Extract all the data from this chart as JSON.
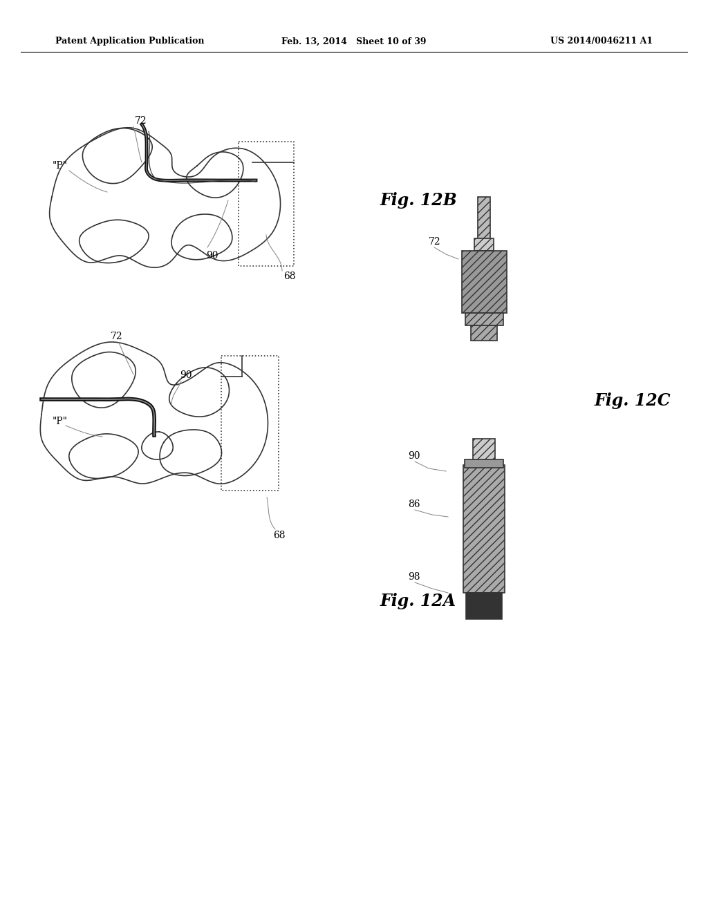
{
  "background_color": "#ffffff",
  "header_left": "Patent Application Publication",
  "header_center": "Feb. 13, 2014   Sheet 10 of 39",
  "header_right": "US 2014/0046211 A1",
  "outline_color": "#333333",
  "catheter_color": "#111111",
  "device_fill": "#aaaaaa",
  "device_dark": "#555555",
  "tip_color": "#222222",
  "lw": 1.2
}
